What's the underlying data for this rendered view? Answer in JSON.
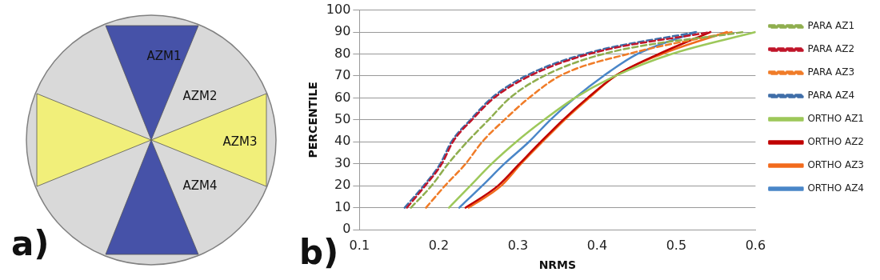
{
  "chart_data": [
    {
      "type": "other",
      "title": "a)",
      "annotations": [
        "AZM1",
        "AZM2",
        "AZM3",
        "AZM4"
      ]
    },
    {
      "type": "line",
      "title": "b)",
      "xlabel": "NRMS",
      "ylabel": "PERCENTILE",
      "xlim": [
        0.1,
        0.6
      ],
      "xticks": [
        0.1,
        0.2,
        0.3,
        0.4,
        0.5,
        0.6
      ],
      "ylim": [
        0,
        100
      ],
      "yticks": [
        0,
        10,
        20,
        30,
        40,
        50,
        60,
        70,
        80,
        90,
        100
      ],
      "grid": "y",
      "legend": "right",
      "marker": "none",
      "series": [
        {
          "name": "PARA AZ1",
          "color": "#8fae4e",
          "line_style": "dashed",
          "x": [
            0.165,
            0.191,
            0.212,
            0.236,
            0.263,
            0.29,
            0.333,
            0.408,
            0.585
          ],
          "values": [
            10,
            20,
            30,
            40,
            50,
            60,
            70,
            80,
            90
          ]
        },
        {
          "name": "PARA AZ2",
          "color": "#c0152a",
          "line_style": "dashed",
          "x": [
            0.16,
            0.183,
            0.204,
            0.218,
            0.242,
            0.27,
            0.315,
            0.39,
            0.543
          ],
          "values": [
            10,
            20,
            30,
            40,
            50,
            60,
            70,
            80,
            90
          ]
        },
        {
          "name": "PARA AZ3",
          "color": "#f07c28",
          "line_style": "dashed",
          "x": [
            0.184,
            0.208,
            0.234,
            0.255,
            0.283,
            0.314,
            0.353,
            0.439,
            0.57
          ],
          "values": [
            10,
            20,
            30,
            40,
            50,
            60,
            70,
            80,
            90
          ]
        },
        {
          "name": "PARA AZ4",
          "color": "#3f6ea8",
          "line_style": "dashed",
          "x": [
            0.157,
            0.181,
            0.202,
            0.216,
            0.24,
            0.267,
            0.31,
            0.384,
            0.525
          ],
          "values": [
            10,
            20,
            30,
            40,
            50,
            60,
            70,
            80,
            90
          ]
        },
        {
          "name": "ORTHO AZ1",
          "color": "#9dc85a",
          "line_style": "solid",
          "x": [
            0.213,
            0.24,
            0.267,
            0.298,
            0.333,
            0.372,
            0.423,
            0.494,
            0.6
          ],
          "values": [
            10,
            20,
            30,
            40,
            50,
            60,
            70,
            80,
            90
          ]
        },
        {
          "name": "ORTHO AZ2",
          "color": "#c00000",
          "line_style": "solid",
          "x": [
            0.234,
            0.275,
            0.302,
            0.329,
            0.357,
            0.388,
            0.423,
            0.478,
            0.543
          ],
          "values": [
            10,
            20,
            30,
            40,
            50,
            60,
            70,
            80,
            90
          ]
        },
        {
          "name": "ORTHO AZ3",
          "color": "#f26b1d",
          "line_style": "solid",
          "x": [
            0.238,
            0.279,
            0.304,
            0.331,
            0.359,
            0.39,
            0.423,
            0.482,
            0.564
          ],
          "values": [
            10,
            20,
            30,
            40,
            50,
            60,
            70,
            80,
            90
          ]
        },
        {
          "name": "ORTHO AZ4",
          "color": "#4a86c8",
          "line_style": "solid",
          "x": [
            0.226,
            0.255,
            0.283,
            0.314,
            0.341,
            0.372,
            0.408,
            0.451,
            0.525
          ],
          "values": [
            10,
            20,
            30,
            40,
            50,
            60,
            70,
            80,
            90
          ]
        }
      ]
    }
  ]
}
